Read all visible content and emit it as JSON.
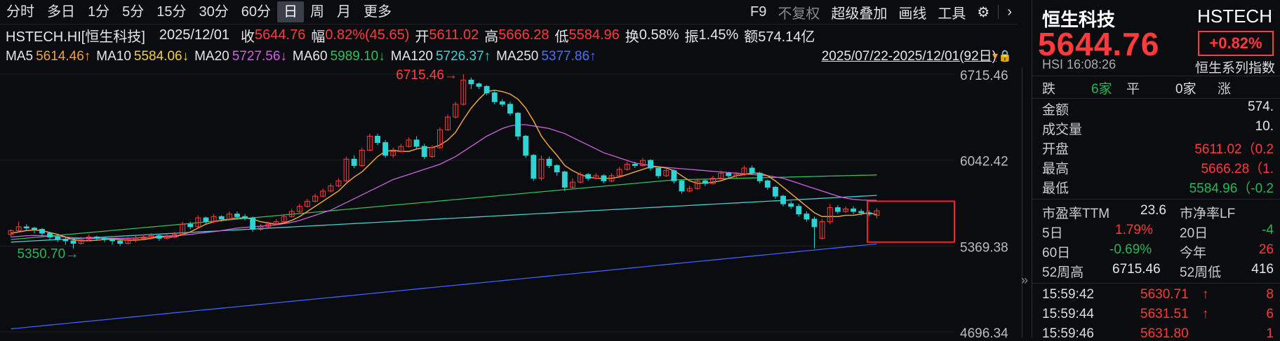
{
  "toolbar": {
    "periods": [
      "分时",
      "多日",
      "1分",
      "5分",
      "15分",
      "30分",
      "60分",
      "日",
      "周",
      "月",
      "更多"
    ],
    "active_period": "日",
    "right_items": [
      "F9",
      "不复权",
      "超级叠加",
      "画线",
      "工具"
    ]
  },
  "info": {
    "symbol": "HSTECH.HI[恒生科技]",
    "date": "2025/12/01",
    "close_label": "收",
    "close": "5644.76",
    "change_label": "幅",
    "change": "0.82%(45.65)",
    "open_label": "开",
    "open": "5611.02",
    "high_label": "高",
    "high": "5666.28",
    "low_label": "低",
    "low": "5584.96",
    "turnover_label": "换",
    "turnover": "0.58%",
    "amplitude_label": "振",
    "amplitude": "1.45%",
    "amount_label": "额",
    "amount": "574.14亿"
  },
  "ma": {
    "ma5_label": "MA5",
    "ma5": "5614.46↑",
    "ma10_label": "MA10",
    "ma10": "5584.06↓",
    "ma20_label": "MA20",
    "ma20": "5727.56↓",
    "ma60_label": "MA60",
    "ma60": "5989.10↓",
    "ma120_label": "MA120",
    "ma120": "5726.37↑",
    "ma250_label": "MA250",
    "ma250": "5377.86↑",
    "range": "2025/07/22-2025/12/01(92日)"
  },
  "colors": {
    "up": "#ff3b3b",
    "down": "#2fd3d3",
    "ma5": "#f0a040",
    "ma10": "#f0d040",
    "ma20": "#d060e0",
    "ma60": "#30c060",
    "ma120": "#40d0d0",
    "ma250": "#4060ff"
  },
  "chart_data": {
    "type": "candlestick",
    "y_ticks": [
      "6715.46",
      "6042.42",
      "5369.38",
      "4696.34"
    ],
    "high_mark": "6715.46",
    "low_mark": "5350.70",
    "ylim": [
      4696.34,
      6715.46
    ],
    "candles": [
      [
        5460,
        5490,
        5440,
        5500
      ],
      [
        5490,
        5520,
        5480,
        5560
      ],
      [
        5520,
        5510,
        5490,
        5540
      ],
      [
        5510,
        5500,
        5470,
        5520
      ],
      [
        5500,
        5470,
        5450,
        5510
      ],
      [
        5470,
        5440,
        5420,
        5480
      ],
      [
        5440,
        5420,
        5400,
        5460
      ],
      [
        5420,
        5410,
        5380,
        5440
      ],
      [
        5410,
        5390,
        5350,
        5420
      ],
      [
        5390,
        5420,
        5380,
        5440
      ],
      [
        5420,
        5440,
        5410,
        5460
      ],
      [
        5440,
        5430,
        5410,
        5450
      ],
      [
        5430,
        5420,
        5400,
        5440
      ],
      [
        5420,
        5410,
        5380,
        5430
      ],
      [
        5410,
        5390,
        5370,
        5420
      ],
      [
        5390,
        5420,
        5380,
        5440
      ],
      [
        5420,
        5430,
        5400,
        5450
      ],
      [
        5430,
        5440,
        5420,
        5460
      ],
      [
        5440,
        5450,
        5420,
        5470
      ],
      [
        5450,
        5430,
        5410,
        5460
      ],
      [
        5430,
        5440,
        5420,
        5460
      ],
      [
        5440,
        5460,
        5430,
        5480
      ],
      [
        5460,
        5540,
        5450,
        5560
      ],
      [
        5540,
        5520,
        5500,
        5560
      ],
      [
        5520,
        5590,
        5510,
        5610
      ],
      [
        5590,
        5560,
        5540,
        5600
      ],
      [
        5560,
        5600,
        5550,
        5620
      ],
      [
        5600,
        5580,
        5560,
        5610
      ],
      [
        5580,
        5620,
        5570,
        5640
      ],
      [
        5620,
        5600,
        5580,
        5640
      ],
      [
        5600,
        5590,
        5570,
        5620
      ],
      [
        5590,
        5500,
        5480,
        5600
      ],
      [
        5500,
        5520,
        5490,
        5540
      ],
      [
        5520,
        5540,
        5510,
        5560
      ],
      [
        5540,
        5560,
        5530,
        5580
      ],
      [
        5560,
        5600,
        5550,
        5620
      ],
      [
        5600,
        5640,
        5590,
        5660
      ],
      [
        5640,
        5680,
        5630,
        5700
      ],
      [
        5680,
        5720,
        5670,
        5740
      ],
      [
        5720,
        5760,
        5710,
        5780
      ],
      [
        5760,
        5800,
        5750,
        5820
      ],
      [
        5800,
        5840,
        5790,
        5860
      ],
      [
        5840,
        5880,
        5830,
        5900
      ],
      [
        5880,
        6050,
        5870,
        6070
      ],
      [
        6050,
        6000,
        5980,
        6080
      ],
      [
        6000,
        6120,
        5990,
        6140
      ],
      [
        6120,
        6230,
        6110,
        6250
      ],
      [
        6230,
        6180,
        6160,
        6250
      ],
      [
        6180,
        6080,
        6060,
        6200
      ],
      [
        6080,
        6110,
        6060,
        6140
      ],
      [
        6110,
        6150,
        6100,
        6170
      ],
      [
        6150,
        6200,
        6140,
        6220
      ],
      [
        6200,
        6150,
        6130,
        6230
      ],
      [
        6150,
        6070,
        6050,
        6170
      ],
      [
        6070,
        6140,
        6060,
        6160
      ],
      [
        6140,
        6280,
        6130,
        6300
      ],
      [
        6280,
        6380,
        6270,
        6400
      ],
      [
        6380,
        6480,
        6370,
        6500
      ],
      [
        6480,
        6670,
        6470,
        6715
      ],
      [
        6670,
        6640,
        6600,
        6690
      ],
      [
        6640,
        6620,
        6600,
        6650
      ],
      [
        6620,
        6570,
        6550,
        6630
      ],
      [
        6570,
        6500,
        6480,
        6590
      ],
      [
        6500,
        6480,
        6460,
        6520
      ],
      [
        6480,
        6410,
        6390,
        6500
      ],
      [
        6410,
        6230,
        6200,
        6420
      ],
      [
        6230,
        6080,
        6060,
        6240
      ],
      [
        6080,
        5900,
        5880,
        6090
      ],
      [
        5900,
        6050,
        5880,
        6080
      ],
      [
        6050,
        6000,
        5980,
        6070
      ],
      [
        6000,
        5950,
        5920,
        6010
      ],
      [
        5950,
        5830,
        5800,
        5960
      ],
      [
        5830,
        5870,
        5820,
        5900
      ],
      [
        5870,
        5930,
        5860,
        5950
      ],
      [
        5930,
        5900,
        5880,
        5940
      ],
      [
        5900,
        5920,
        5890,
        5940
      ],
      [
        5920,
        5880,
        5860,
        5930
      ],
      [
        5880,
        5920,
        5870,
        5940
      ],
      [
        5920,
        5970,
        5910,
        5990
      ],
      [
        5970,
        6010,
        5960,
        6030
      ],
      [
        6010,
        6000,
        5980,
        6030
      ],
      [
        6000,
        6040,
        5990,
        6060
      ],
      [
        6040,
        5980,
        5960,
        6050
      ],
      [
        5980,
        5920,
        5900,
        5990
      ],
      [
        5920,
        5960,
        5910,
        5980
      ],
      [
        5960,
        5880,
        5860,
        5970
      ],
      [
        5880,
        5800,
        5780,
        5890
      ],
      [
        5800,
        5820,
        5790,
        5840
      ],
      [
        5820,
        5880,
        5810,
        5900
      ],
      [
        5880,
        5860,
        5840,
        5890
      ],
      [
        5860,
        5900,
        5850,
        5920
      ],
      [
        5900,
        5940,
        5890,
        5960
      ],
      [
        5940,
        5920,
        5900,
        5950
      ],
      [
        5920,
        5930,
        5900,
        5950
      ],
      [
        5930,
        5980,
        5920,
        6000
      ],
      [
        5980,
        5940,
        5930,
        6000
      ],
      [
        5940,
        5880,
        5860,
        5950
      ],
      [
        5880,
        5830,
        5810,
        5890
      ],
      [
        5830,
        5760,
        5740,
        5840
      ],
      [
        5760,
        5700,
        5680,
        5770
      ],
      [
        5700,
        5680,
        5660,
        5720
      ],
      [
        5680,
        5620,
        5600,
        5700
      ],
      [
        5620,
        5580,
        5560,
        5640
      ],
      [
        5580,
        5520,
        5350,
        5600
      ],
      [
        5430,
        5560,
        5420,
        5580
      ],
      [
        5560,
        5670,
        5540,
        5700
      ],
      [
        5670,
        5640,
        5620,
        5690
      ],
      [
        5640,
        5660,
        5630,
        5680
      ],
      [
        5660,
        5640,
        5620,
        5680
      ],
      [
        5640,
        5630,
        5610,
        5660
      ],
      [
        5630,
        5620,
        5600,
        5650
      ],
      [
        5611,
        5645,
        5585,
        5666
      ]
    ],
    "ma_series": {
      "MA5": [
        5470,
        5480,
        5490,
        5495,
        5490,
        5475,
        5460,
        5440,
        5420,
        5410,
        5410,
        5415,
        5420,
        5425,
        5420,
        5415,
        5415,
        5420,
        5430,
        5440,
        5440,
        5440,
        5460,
        5480,
        5510,
        5540,
        5560,
        5570,
        5580,
        5590,
        5590,
        5580,
        5560,
        5550,
        5540,
        5550,
        5570,
        5600,
        5640,
        5680,
        5720,
        5760,
        5800,
        5860,
        5910,
        5950,
        6010,
        6070,
        6110,
        6120,
        6110,
        6110,
        6130,
        6140,
        6140,
        6160,
        6200,
        6260,
        6360,
        6450,
        6520,
        6580,
        6590,
        6580,
        6560,
        6520,
        6450,
        6350,
        6230,
        6150,
        6080,
        6000,
        5960,
        5930,
        5910,
        5900,
        5900,
        5900,
        5910,
        5930,
        5950,
        5970,
        5990,
        5990,
        5980,
        5960,
        5920,
        5880,
        5860,
        5860,
        5870,
        5880,
        5900,
        5920,
        5930,
        5940,
        5940,
        5920,
        5880,
        5830,
        5780,
        5730,
        5680,
        5630,
        5600,
        5600,
        5600,
        5610,
        5610,
        5620,
        5630,
        5614
      ],
      "MA20": [
        5440,
        5445,
        5450,
        5452,
        5450,
        5448,
        5445,
        5440,
        5435,
        5432,
        5430,
        5430,
        5430,
        5430,
        5430,
        5430,
        5432,
        5435,
        5440,
        5445,
        5448,
        5450,
        5455,
        5460,
        5468,
        5475,
        5482,
        5490,
        5500,
        5510,
        5515,
        5520,
        5525,
        5530,
        5535,
        5545,
        5555,
        5570,
        5590,
        5610,
        5630,
        5650,
        5680,
        5710,
        5740,
        5770,
        5800,
        5830,
        5860,
        5890,
        5910,
        5930,
        5950,
        5970,
        5990,
        6010,
        6040,
        6070,
        6110,
        6150,
        6190,
        6230,
        6260,
        6290,
        6310,
        6320,
        6320,
        6310,
        6300,
        6290,
        6270,
        6250,
        6220,
        6190,
        6160,
        6130,
        6100,
        6080,
        6060,
        6040,
        6020,
        6010,
        6000,
        5990,
        5985,
        5980,
        5975,
        5970,
        5965,
        5960,
        5955,
        5950,
        5945,
        5940,
        5935,
        5930,
        5925,
        5920,
        5910,
        5900,
        5880,
        5860,
        5840,
        5820,
        5800,
        5780,
        5760,
        5745,
        5735,
        5730,
        5728,
        5727
      ]
    }
  },
  "quote": {
    "name": "恒生科技",
    "code": "HSTECH",
    "price": "5644.76",
    "pct": "+0.82%",
    "sub": "HSI  16:08:26",
    "series": "恒生系列指数",
    "fall_label": "跌",
    "fall": "6家",
    "flat_label": "平",
    "flat": "0家",
    "rise_label": "涨",
    "amount_label": "金额",
    "amount": "574.",
    "volume_label": "成交量",
    "volume": "10.",
    "open_label": "开盘",
    "open": "5611.02（0.2",
    "high_label": "最高",
    "high": "5666.28（1.",
    "low_label": "最低",
    "low": "5584.96（-0.2",
    "pe_label": "市盈率TTM",
    "pe": "23.6",
    "pb_label": "市净率LF",
    "d5_label": "5日",
    "d5": "1.79%",
    "d20_label": "20日",
    "d20": "-4",
    "d60_label": "60日",
    "d60": "-0.69%",
    "ytd_label": "今年",
    "ytd": "26",
    "h52_label": "52周高",
    "h52": "6715.46",
    "l52_label": "52周低",
    "l52": "416",
    "ticks": [
      {
        "time": "15:59:42",
        "price": "5630.71",
        "vol": "8"
      },
      {
        "time": "15:59:44",
        "price": "5631.51",
        "vol": "6"
      },
      {
        "time": "15:59:46",
        "price": "5631.80",
        "vol": "1"
      }
    ]
  }
}
